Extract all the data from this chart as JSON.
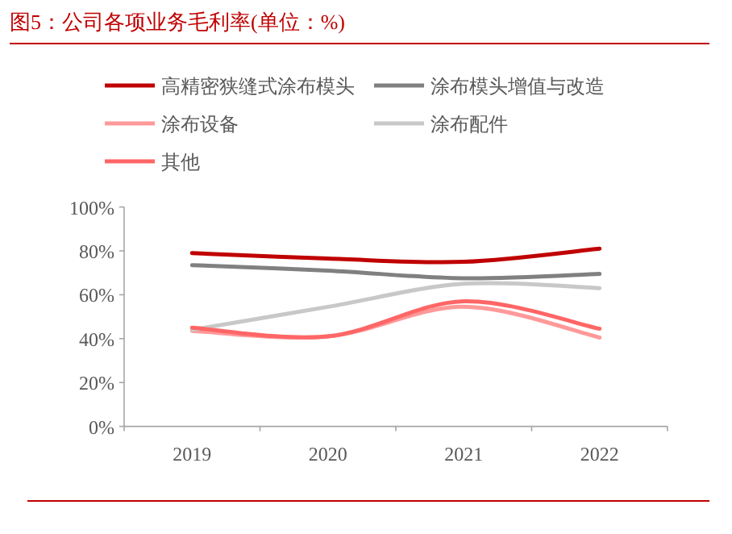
{
  "chart_data": {
    "type": "line",
    "title": "图5：公司各项业务毛利率(单位：%)",
    "categories": [
      "2019",
      "2020",
      "2021",
      "2022"
    ],
    "series": [
      {
        "name": "高精密狭缝式涂布模头",
        "color": "#c00000",
        "values": [
          79,
          76.5,
          75,
          81
        ]
      },
      {
        "name": "涂布模头增值与改造",
        "color": "#808080",
        "values": [
          73.5,
          71,
          67.5,
          69.5
        ]
      },
      {
        "name": "涂布设备",
        "color": "#ff9999",
        "values": [
          43.5,
          41,
          54.5,
          40.5
        ]
      },
      {
        "name": "涂布配件",
        "color": "#c8c8c8",
        "values": [
          44,
          54.5,
          65,
          63
        ]
      },
      {
        "name": "其他",
        "color": "#ff6666",
        "values": [
          45,
          41,
          57,
          44.5
        ]
      }
    ],
    "ylim": [
      0,
      100
    ],
    "yticks": [
      {
        "value": 0,
        "label": "0%"
      },
      {
        "value": 20,
        "label": "20%"
      },
      {
        "value": 40,
        "label": "40%"
      },
      {
        "value": 60,
        "label": "60%"
      },
      {
        "value": 80,
        "label": "80%"
      },
      {
        "value": 100,
        "label": "100%"
      }
    ],
    "legend": "top",
    "grid": false,
    "line_style": "solid",
    "marker": "none"
  }
}
